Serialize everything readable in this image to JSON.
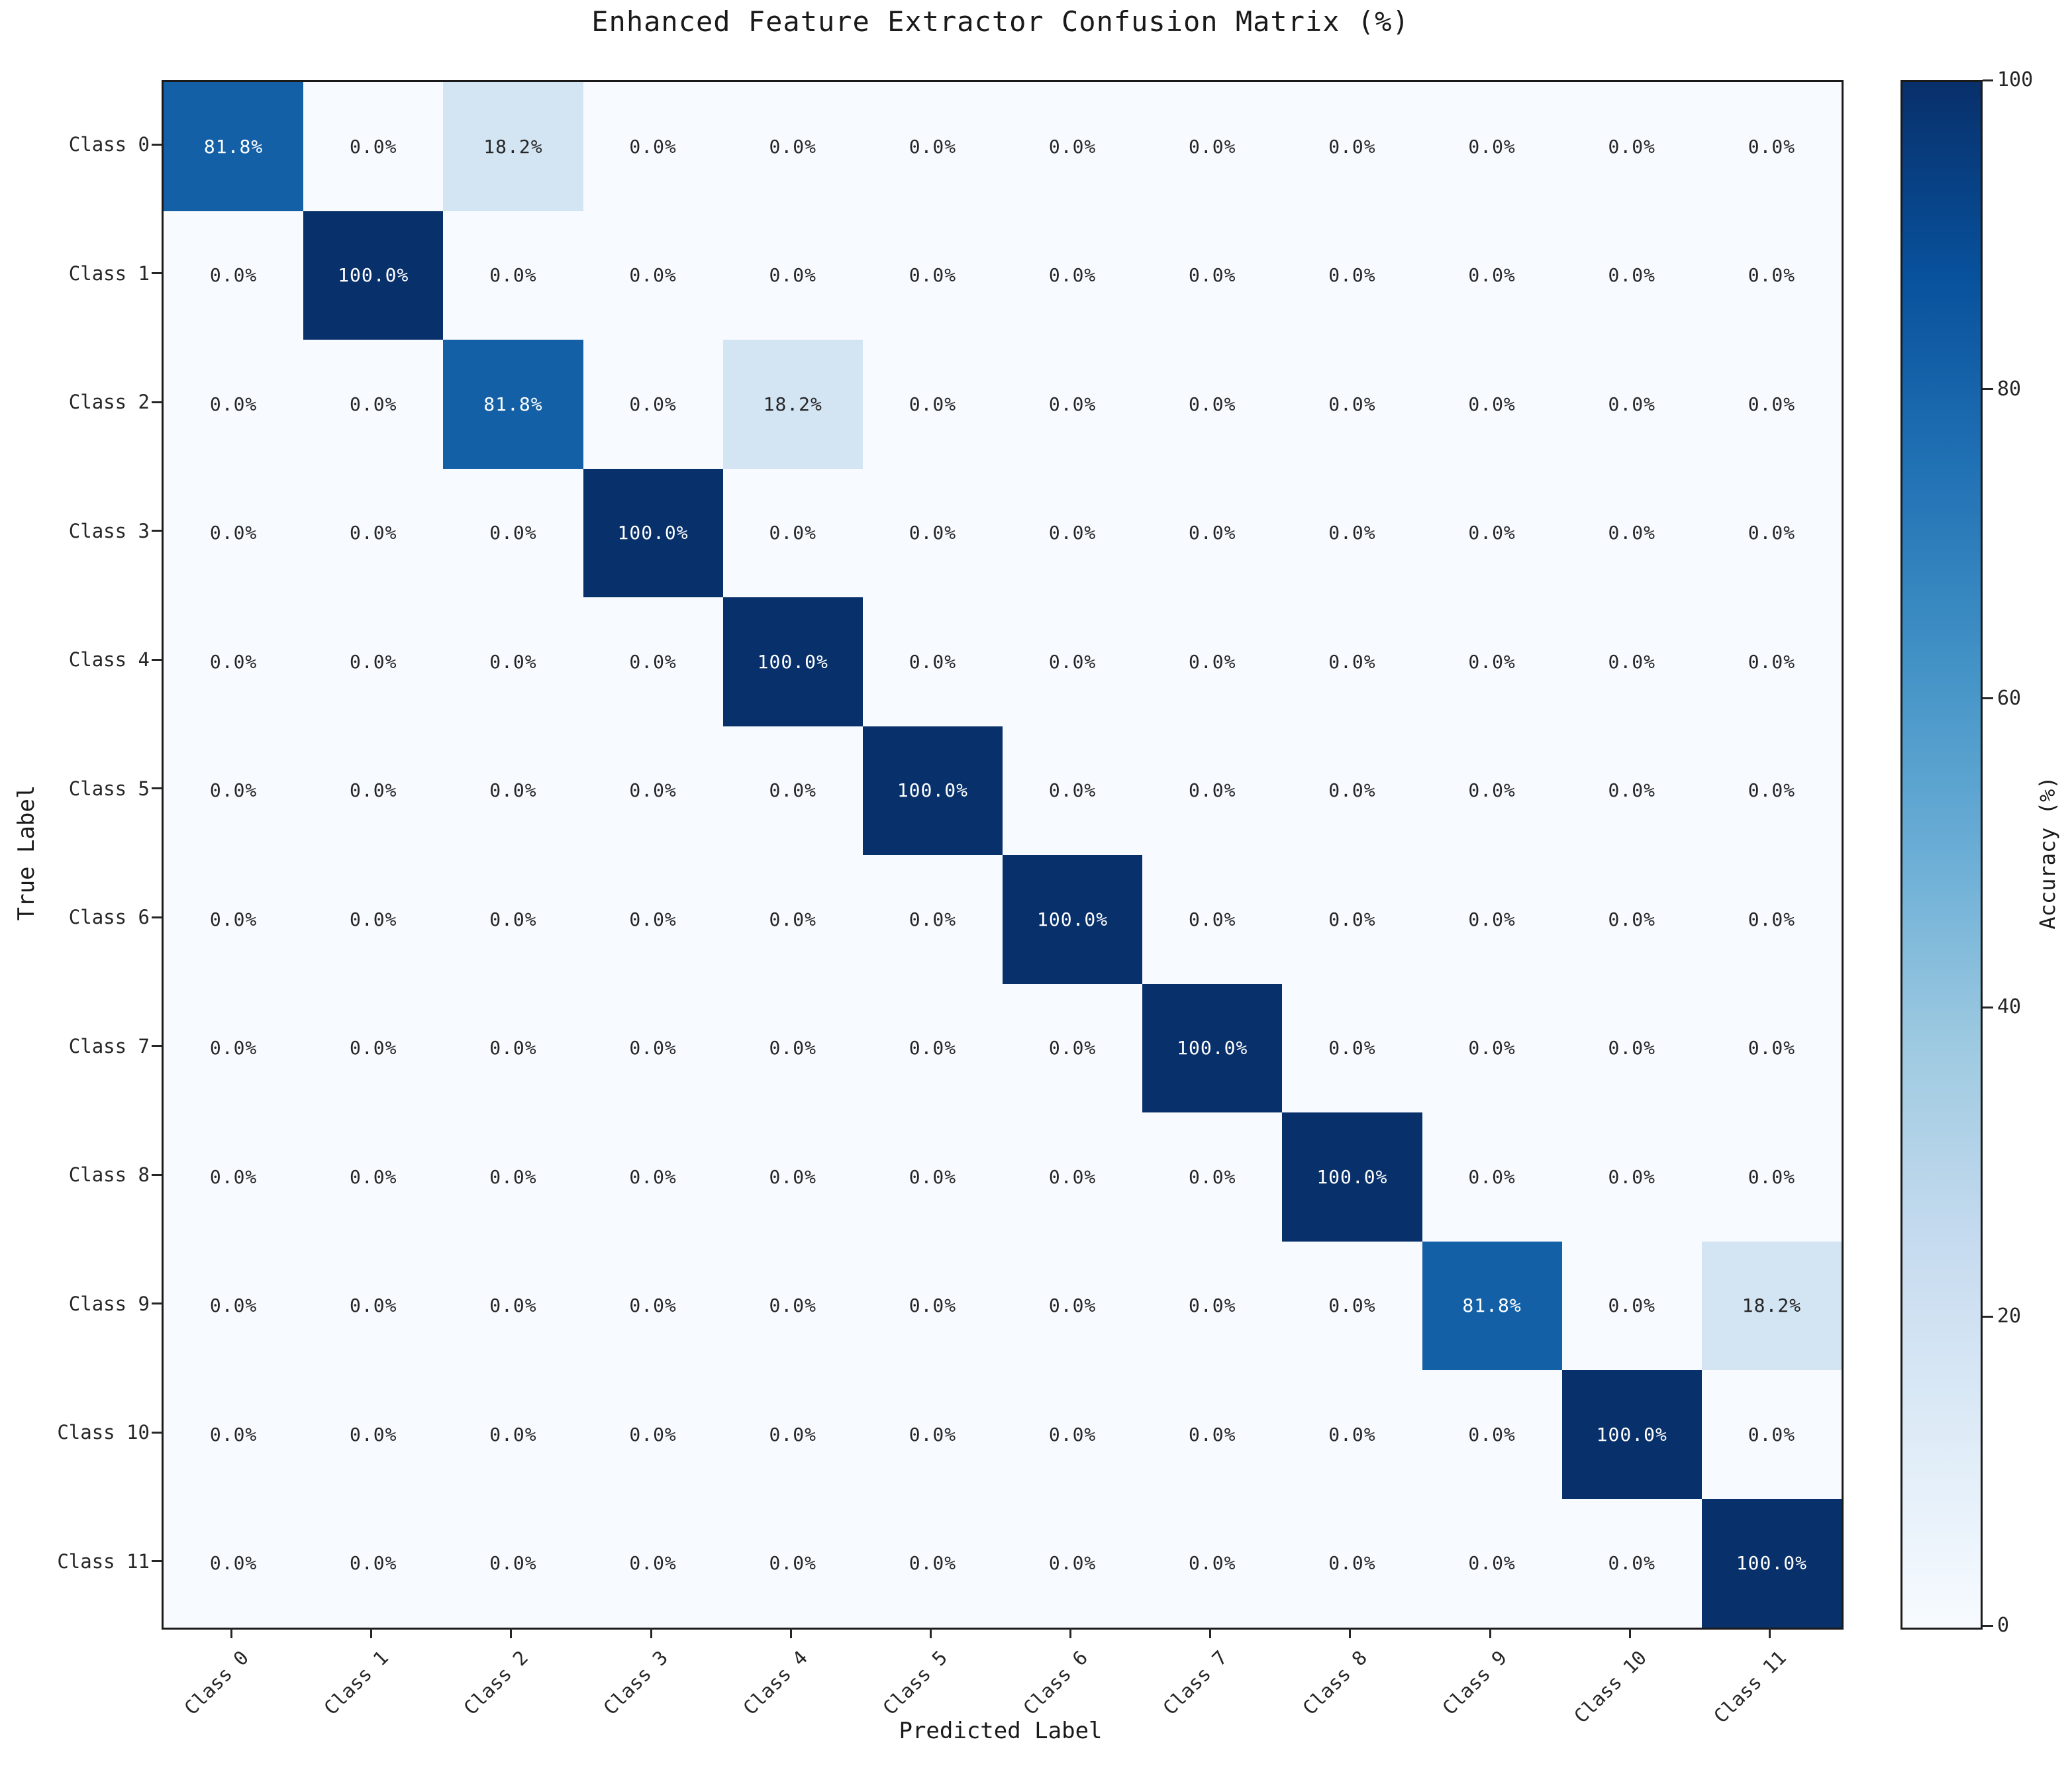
{
  "figure": {
    "title": "Enhanced Feature Extractor Confusion Matrix (%)"
  },
  "chart_data": {
    "type": "heatmap",
    "title": "Enhanced Feature Extractor Confusion Matrix (%)",
    "xlabel": "Predicted Label",
    "ylabel": "True Label",
    "x_tick_labels": [
      "Class 0",
      "Class 1",
      "Class 2",
      "Class 3",
      "Class 4",
      "Class 5",
      "Class 6",
      "Class 7",
      "Class 8",
      "Class 9",
      "Class 10",
      "Class 11"
    ],
    "y_tick_labels": [
      "Class 0",
      "Class 1",
      "Class 2",
      "Class 3",
      "Class 4",
      "Class 5",
      "Class 6",
      "Class 7",
      "Class 8",
      "Class 9",
      "Class 10",
      "Class 11"
    ],
    "x_tick_rotation_deg": 45,
    "value_range": [
      0,
      100
    ],
    "grid": false,
    "values_percent": [
      [
        81.8,
        0.0,
        18.2,
        0.0,
        0.0,
        0.0,
        0.0,
        0.0,
        0.0,
        0.0,
        0.0,
        0.0
      ],
      [
        0.0,
        100.0,
        0.0,
        0.0,
        0.0,
        0.0,
        0.0,
        0.0,
        0.0,
        0.0,
        0.0,
        0.0
      ],
      [
        0.0,
        0.0,
        81.8,
        0.0,
        18.2,
        0.0,
        0.0,
        0.0,
        0.0,
        0.0,
        0.0,
        0.0
      ],
      [
        0.0,
        0.0,
        0.0,
        100.0,
        0.0,
        0.0,
        0.0,
        0.0,
        0.0,
        0.0,
        0.0,
        0.0
      ],
      [
        0.0,
        0.0,
        0.0,
        0.0,
        100.0,
        0.0,
        0.0,
        0.0,
        0.0,
        0.0,
        0.0,
        0.0
      ],
      [
        0.0,
        0.0,
        0.0,
        0.0,
        0.0,
        100.0,
        0.0,
        0.0,
        0.0,
        0.0,
        0.0,
        0.0
      ],
      [
        0.0,
        0.0,
        0.0,
        0.0,
        0.0,
        0.0,
        100.0,
        0.0,
        0.0,
        0.0,
        0.0,
        0.0
      ],
      [
        0.0,
        0.0,
        0.0,
        0.0,
        0.0,
        0.0,
        0.0,
        100.0,
        0.0,
        0.0,
        0.0,
        0.0
      ],
      [
        0.0,
        0.0,
        0.0,
        0.0,
        0.0,
        0.0,
        0.0,
        0.0,
        100.0,
        0.0,
        0.0,
        0.0
      ],
      [
        0.0,
        0.0,
        0.0,
        0.0,
        0.0,
        0.0,
        0.0,
        0.0,
        0.0,
        81.8,
        0.0,
        18.2
      ],
      [
        0.0,
        0.0,
        0.0,
        0.0,
        0.0,
        0.0,
        0.0,
        0.0,
        0.0,
        0.0,
        100.0,
        0.0
      ],
      [
        0.0,
        0.0,
        0.0,
        0.0,
        0.0,
        0.0,
        0.0,
        0.0,
        0.0,
        0.0,
        0.0,
        100.0
      ]
    ],
    "colorbar": {
      "label": "Accuracy (%)",
      "ticks": [
        100,
        80,
        60,
        40,
        20,
        0
      ],
      "range": [
        0,
        100
      ],
      "colormap": "Blues",
      "colormap_stops": [
        "#f7fbff",
        "#deebf7",
        "#c6dbef",
        "#9ecae1",
        "#6baed6",
        "#4292c6",
        "#2171b5",
        "#08519c",
        "#08306b"
      ]
    },
    "styles": {
      "dark_text": "#262626",
      "light_text": "#ffffff",
      "spine_color": "#1a1a1a",
      "background": "#ffffff",
      "text_color_threshold": 50
    }
  }
}
